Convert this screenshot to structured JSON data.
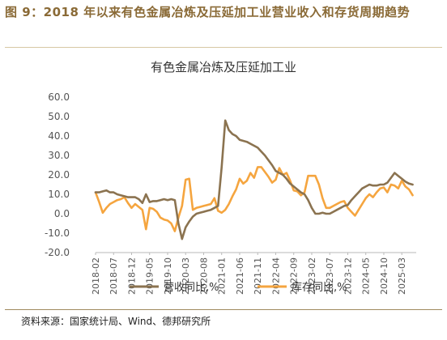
{
  "figure": {
    "title": "图 9：2018 年以来有色金属冶炼及压延加工业营业收入和存货周期趋势",
    "source": "资料来源：国家统计局、Wind、德邦研究所"
  },
  "chart_data": {
    "type": "line",
    "title": "有色金属冶炼及压延加工业",
    "xlabel": "",
    "ylabel": "",
    "ylim": [
      -20,
      60
    ],
    "yticks": [
      "60.0",
      "50.0",
      "40.0",
      "30.0",
      "20.0",
      "10.0",
      "0.0",
      "-10.0",
      "-20.0"
    ],
    "xlim": [
      "2018-02",
      "2025-07"
    ],
    "xticks": [
      "2018-02",
      "2018-07",
      "2018-12",
      "2019-05",
      "2019-10",
      "2020-03",
      "2020-08",
      "2021-01",
      "2021-06",
      "2021-11",
      "2022-04",
      "2022-09",
      "2023-02",
      "2023-07",
      "2023-12",
      "2024-05",
      "2024-10",
      "2025-03"
    ],
    "legend": "bottom",
    "grid": false,
    "colors": {
      "revenue": "#8b7350",
      "inventory": "#f5a53f"
    },
    "series": [
      {
        "key": "revenue",
        "name": "营收同比,%",
        "points": [
          [
            "2018-02",
            11.0
          ],
          [
            "2018-03",
            11.0
          ],
          [
            "2018-04",
            11.5
          ],
          [
            "2018-05",
            12.0
          ],
          [
            "2018-06",
            11.0
          ],
          [
            "2018-07",
            11.0
          ],
          [
            "2018-08",
            10.0
          ],
          [
            "2018-09",
            9.5
          ],
          [
            "2018-10",
            9.0
          ],
          [
            "2018-11",
            8.5
          ],
          [
            "2018-12",
            8.5
          ],
          [
            "2019-01",
            8.5
          ],
          [
            "2019-02",
            7.5
          ],
          [
            "2019-03",
            5.5
          ],
          [
            "2019-04",
            10.0
          ],
          [
            "2019-05",
            6.0
          ],
          [
            "2019-06",
            6.5
          ],
          [
            "2019-07",
            6.5
          ],
          [
            "2019-08",
            7.0
          ],
          [
            "2019-09",
            7.5
          ],
          [
            "2019-10",
            7.0
          ],
          [
            "2019-11",
            7.5
          ],
          [
            "2019-12",
            7.0
          ],
          [
            "2020-01",
            -5.0
          ],
          [
            "2020-02",
            -13.0
          ],
          [
            "2020-03",
            -7.0
          ],
          [
            "2020-04",
            -4.0
          ],
          [
            "2020-05",
            -1.5
          ],
          [
            "2020-06",
            0.0
          ],
          [
            "2020-07",
            0.5
          ],
          [
            "2020-08",
            1.0
          ],
          [
            "2020-09",
            1.5
          ],
          [
            "2020-10",
            2.0
          ],
          [
            "2020-11",
            3.0
          ],
          [
            "2020-12",
            4.0
          ],
          [
            "2021-01",
            24.0
          ],
          [
            "2021-02",
            48.0
          ],
          [
            "2021-03",
            43.0
          ],
          [
            "2021-04",
            41.0
          ],
          [
            "2021-05",
            40.0
          ],
          [
            "2021-06",
            38.0
          ],
          [
            "2021-07",
            37.5
          ],
          [
            "2021-08",
            37.0
          ],
          [
            "2021-09",
            36.0
          ],
          [
            "2021-10",
            35.0
          ],
          [
            "2021-11",
            34.0
          ],
          [
            "2021-12",
            32.0
          ],
          [
            "2022-01",
            30.0
          ],
          [
            "2022-02",
            27.5
          ],
          [
            "2022-03",
            25.0
          ],
          [
            "2022-04",
            22.0
          ],
          [
            "2022-05",
            21.0
          ],
          [
            "2022-06",
            20.0
          ],
          [
            "2022-07",
            18.0
          ],
          [
            "2022-08",
            15.5
          ],
          [
            "2022-09",
            14.0
          ],
          [
            "2022-10",
            12.5
          ],
          [
            "2022-11",
            11.0
          ],
          [
            "2022-12",
            10.0
          ],
          [
            "2023-01",
            7.0
          ],
          [
            "2023-02",
            3.0
          ],
          [
            "2023-03",
            0.0
          ],
          [
            "2023-04",
            0.0
          ],
          [
            "2023-05",
            0.5
          ],
          [
            "2023-06",
            0.0
          ],
          [
            "2023-07",
            0.0
          ],
          [
            "2023-08",
            1.0
          ],
          [
            "2023-09",
            2.0
          ],
          [
            "2023-10",
            3.0
          ],
          [
            "2023-11",
            4.0
          ],
          [
            "2023-12",
            4.5
          ],
          [
            "2024-01",
            7.0
          ],
          [
            "2024-02",
            9.0
          ],
          [
            "2024-03",
            11.0
          ],
          [
            "2024-04",
            13.0
          ],
          [
            "2024-05",
            14.0
          ],
          [
            "2024-06",
            15.0
          ],
          [
            "2024-07",
            14.5
          ],
          [
            "2024-08",
            14.5
          ],
          [
            "2024-09",
            15.0
          ],
          [
            "2024-10",
            15.0
          ],
          [
            "2024-11",
            16.0
          ],
          [
            "2024-12",
            18.5
          ],
          [
            "2025-01",
            21.0
          ],
          [
            "2025-02",
            19.5
          ],
          [
            "2025-03",
            18.0
          ],
          [
            "2025-04",
            16.5
          ],
          [
            "2025-05",
            15.5
          ],
          [
            "2025-06",
            15.0
          ]
        ]
      },
      {
        "key": "inventory",
        "name": "库存同比,%",
        "points": [
          [
            "2018-02",
            11.0
          ],
          [
            "2018-03",
            6.0
          ],
          [
            "2018-04",
            0.5
          ],
          [
            "2018-05",
            3.0
          ],
          [
            "2018-06",
            5.0
          ],
          [
            "2018-07",
            6.0
          ],
          [
            "2018-08",
            7.0
          ],
          [
            "2018-09",
            7.5
          ],
          [
            "2018-10",
            8.5
          ],
          [
            "2018-11",
            5.5
          ],
          [
            "2018-12",
            3.0
          ],
          [
            "2019-01",
            5.0
          ],
          [
            "2019-02",
            3.5
          ],
          [
            "2019-03",
            2.0
          ],
          [
            "2019-04",
            -8.0
          ],
          [
            "2019-05",
            3.0
          ],
          [
            "2019-06",
            2.5
          ],
          [
            "2019-07",
            1.0
          ],
          [
            "2019-08",
            -2.0
          ],
          [
            "2019-09",
            -3.0
          ],
          [
            "2019-10",
            -3.5
          ],
          [
            "2019-11",
            -5.0
          ],
          [
            "2019-12",
            -9.0
          ],
          [
            "2020-01",
            -2.0
          ],
          [
            "2020-02",
            4.0
          ],
          [
            "2020-03",
            17.5
          ],
          [
            "2020-04",
            18.0
          ],
          [
            "2020-05",
            2.0
          ],
          [
            "2020-06",
            3.0
          ],
          [
            "2020-07",
            3.5
          ],
          [
            "2020-08",
            4.0
          ],
          [
            "2020-09",
            4.5
          ],
          [
            "2020-10",
            5.0
          ],
          [
            "2020-11",
            8.0
          ],
          [
            "2020-12",
            1.5
          ],
          [
            "2021-01",
            0.5
          ],
          [
            "2021-02",
            2.0
          ],
          [
            "2021-03",
            5.0
          ],
          [
            "2021-04",
            9.0
          ],
          [
            "2021-05",
            12.5
          ],
          [
            "2021-06",
            18.0
          ],
          [
            "2021-07",
            15.5
          ],
          [
            "2021-08",
            17.0
          ],
          [
            "2021-09",
            21.0
          ],
          [
            "2021-10",
            18.5
          ],
          [
            "2021-11",
            24.0
          ],
          [
            "2021-12",
            24.0
          ],
          [
            "2022-01",
            21.5
          ],
          [
            "2022-02",
            19.0
          ],
          [
            "2022-03",
            16.0
          ],
          [
            "2022-04",
            17.5
          ],
          [
            "2022-05",
            23.5
          ],
          [
            "2022-06",
            20.0
          ],
          [
            "2022-07",
            21.0
          ],
          [
            "2022-08",
            17.0
          ],
          [
            "2022-09",
            12.0
          ],
          [
            "2022-10",
            11.5
          ],
          [
            "2022-11",
            9.5
          ],
          [
            "2022-12",
            11.0
          ],
          [
            "2023-01",
            19.5
          ],
          [
            "2023-02",
            19.5
          ],
          [
            "2023-03",
            19.5
          ],
          [
            "2023-04",
            15.0
          ],
          [
            "2023-05",
            8.0
          ],
          [
            "2023-06",
            3.0
          ],
          [
            "2023-07",
            3.0
          ],
          [
            "2023-08",
            4.0
          ],
          [
            "2023-09",
            5.0
          ],
          [
            "2023-10",
            6.0
          ],
          [
            "2023-11",
            6.5
          ],
          [
            "2023-12",
            3.0
          ],
          [
            "2024-01",
            1.0
          ],
          [
            "2024-02",
            -1.0
          ],
          [
            "2024-03",
            2.0
          ],
          [
            "2024-04",
            5.0
          ],
          [
            "2024-05",
            8.0
          ],
          [
            "2024-06",
            10.0
          ],
          [
            "2024-07",
            8.5
          ],
          [
            "2024-08",
            11.0
          ],
          [
            "2024-09",
            13.0
          ],
          [
            "2024-10",
            13.5
          ],
          [
            "2024-11",
            11.0
          ],
          [
            "2024-12",
            15.0
          ],
          [
            "2025-01",
            14.5
          ],
          [
            "2025-02",
            13.0
          ],
          [
            "2025-03",
            17.0
          ],
          [
            "2025-04",
            14.0
          ],
          [
            "2025-05",
            12.5
          ],
          [
            "2025-06",
            9.5
          ]
        ]
      }
    ]
  }
}
